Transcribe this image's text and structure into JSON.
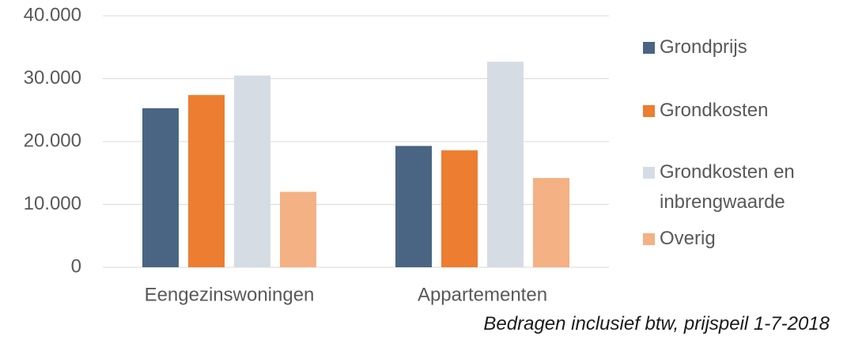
{
  "chart_data": {
    "type": "bar",
    "categories": [
      "Eengezinswoningen",
      "Appartementen"
    ],
    "series": [
      {
        "name": "Grondprijs",
        "color": "#4a6583",
        "values": [
          25300,
          19300
        ]
      },
      {
        "name": "Grondkosten",
        "color": "#ed7d31",
        "values": [
          27400,
          18600
        ]
      },
      {
        "name": "Grondkosten en inbrengwaarde",
        "color": "#d6dce4",
        "values": [
          30500,
          32700
        ]
      },
      {
        "name": "Overig",
        "color": "#f4b183",
        "values": [
          12000,
          14200
        ]
      }
    ],
    "ylim": [
      0,
      40000
    ],
    "yticks": [
      0,
      {
        "value": 10000,
        "label": "10.000"
      },
      {
        "value": 20000,
        "label": "20.000"
      },
      {
        "value": 30000,
        "label": "30.000"
      },
      {
        "value": 40000,
        "label": "40.000"
      }
    ],
    "grid": true,
    "legend": "right",
    "annotation": "Bedragen inclusief btw, prijspeil 1-7-2018"
  }
}
